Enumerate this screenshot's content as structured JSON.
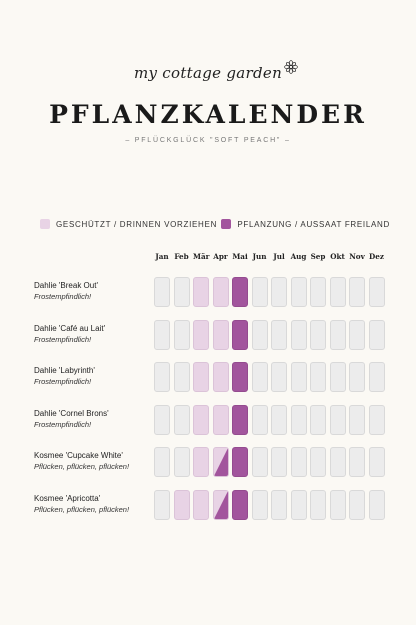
{
  "brand": {
    "name": "my cottage garden",
    "logo_icon": "flower-icon"
  },
  "title": "PFLANZKALENDER",
  "subtitle": "– PFLÜCKGLÜCK \"SOFT PEACH\" –",
  "colors": {
    "protected": "#e8d3e5",
    "outdoor": "#a2559d",
    "empty": "#ececec",
    "background": "#fbf9f4"
  },
  "legend": [
    {
      "label": "GESCHÜTZT / DRINNEN VORZIEHEN",
      "color": "#e8d3e5"
    },
    {
      "label": "PFLANZUNG / AUSSAAT FREILAND",
      "color": "#a2559d"
    }
  ],
  "months": [
    "Jan",
    "Feb",
    "Mär",
    "Apr",
    "Mai",
    "Jun",
    "Jul",
    "Aug",
    "Sep",
    "Okt",
    "Nov",
    "Dez"
  ],
  "plants": [
    {
      "name": "Dahlie 'Break Out'",
      "note": "Frostempfindlich!",
      "cells": [
        "empty",
        "empty",
        "protected",
        "protected",
        "outdoor",
        "empty",
        "empty",
        "empty",
        "empty",
        "empty",
        "empty",
        "empty"
      ]
    },
    {
      "name": "Dahlie 'Café au Lait'",
      "note": "Frostempfindlich!",
      "cells": [
        "empty",
        "empty",
        "protected",
        "protected",
        "outdoor",
        "empty",
        "empty",
        "empty",
        "empty",
        "empty",
        "empty",
        "empty"
      ]
    },
    {
      "name": "Dahlie 'Labyrinth'",
      "note": "Frostempfindlich!",
      "cells": [
        "empty",
        "empty",
        "protected",
        "protected",
        "outdoor",
        "empty",
        "empty",
        "empty",
        "empty",
        "empty",
        "empty",
        "empty"
      ]
    },
    {
      "name": "Dahlie 'Cornel Brons'",
      "note": "Frostempfindlich!",
      "cells": [
        "empty",
        "empty",
        "protected",
        "protected",
        "outdoor",
        "empty",
        "empty",
        "empty",
        "empty",
        "empty",
        "empty",
        "empty"
      ]
    },
    {
      "name": "Kosmee 'Cupcake White'",
      "note": "Pflücken, pflücken, pflücken!",
      "cells": [
        "empty",
        "empty",
        "protected",
        "split",
        "outdoor",
        "empty",
        "empty",
        "empty",
        "empty",
        "empty",
        "empty",
        "empty"
      ]
    },
    {
      "name": "Kosmee 'Apricotta'",
      "note": "Pflücken, pflücken, pflücken!",
      "cells": [
        "empty",
        "protected",
        "protected",
        "split",
        "outdoor",
        "empty",
        "empty",
        "empty",
        "empty",
        "empty",
        "empty",
        "empty"
      ]
    }
  ]
}
